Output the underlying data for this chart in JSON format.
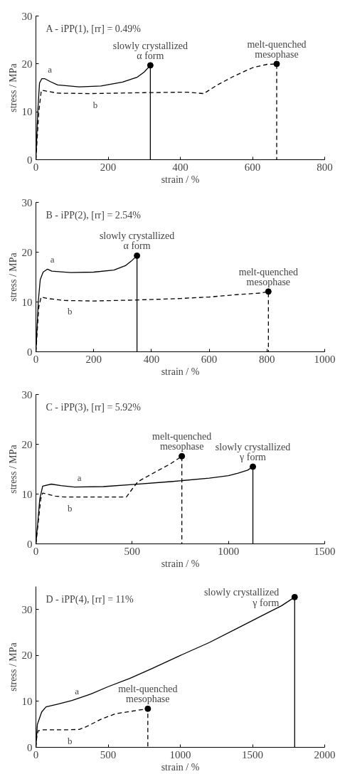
{
  "chart_data": [
    {
      "type": "line",
      "title": "A - iPP(1), [rr] = 0.49%",
      "xlabel": "strain / %",
      "ylabel": "stress / MPa",
      "xlim": [
        0,
        800
      ],
      "ylim": [
        0,
        30
      ],
      "xticks": [
        0,
        200,
        400,
        600,
        800
      ],
      "yticks": [
        0,
        10,
        20,
        30
      ],
      "grid": false,
      "marker": "none",
      "series": [
        {
          "name": "a",
          "color": "#000000",
          "line_style": "solid",
          "x": [
            0,
            5,
            10,
            16,
            25,
            40,
            60,
            120,
            180,
            240,
            280,
            300,
            317,
            317
          ],
          "values": [
            0,
            10,
            16,
            16.9,
            16.9,
            16.3,
            15.6,
            15.2,
            15.4,
            16.2,
            17.2,
            18.3,
            19.7,
            0
          ]
        },
        {
          "name": "b",
          "color": "#000000",
          "line_style": "dashed",
          "x": [
            0,
            8,
            15,
            30,
            60,
            150,
            300,
            420,
            465,
            500,
            550,
            600,
            640,
            667,
            667
          ],
          "values": [
            0,
            10,
            14.5,
            14.3,
            13.9,
            13.8,
            14,
            14.1,
            13.8,
            15.5,
            17.5,
            19.2,
            19.9,
            20,
            0
          ]
        }
      ],
      "annotations": [
        {
          "text": "slowly crystallized\nα form",
          "x": 317,
          "y": 19.7
        },
        {
          "text": "melt-quenched\nmesophase",
          "x": 667,
          "y": 20
        }
      ]
    },
    {
      "type": "line",
      "title": "B - iPP(2), [rr] = 2.54%",
      "xlabel": "strain / %",
      "ylabel": "stress / MPa",
      "xlim": [
        0,
        1000
      ],
      "ylim": [
        0,
        30
      ],
      "xticks": [
        0,
        200,
        400,
        600,
        800,
        1000
      ],
      "yticks": [
        0,
        10,
        20,
        30
      ],
      "grid": false,
      "marker": "none",
      "series": [
        {
          "name": "a",
          "color": "#000000",
          "line_style": "solid",
          "x": [
            0,
            8,
            15,
            25,
            40,
            55,
            120,
            200,
            270,
            310,
            330,
            350,
            350
          ],
          "values": [
            0,
            10,
            14.5,
            16,
            16.6,
            16.2,
            15.9,
            16,
            16.4,
            17.3,
            18.2,
            19.3,
            0
          ]
        },
        {
          "name": "b",
          "color": "#000000",
          "line_style": "dashed",
          "x": [
            0,
            10,
            18,
            40,
            100,
            200,
            350,
            500,
            600,
            700,
            780,
            805,
            805
          ],
          "values": [
            0,
            9,
            11,
            10.7,
            10.3,
            10.2,
            10.4,
            10.7,
            11,
            11.5,
            11.8,
            12.1,
            0
          ]
        }
      ],
      "annotations": [
        {
          "text": "slowly crystallized\nα form",
          "x": 350,
          "y": 19.3
        },
        {
          "text": "melt-quenched\nmesophase",
          "x": 805,
          "y": 12.1
        }
      ]
    },
    {
      "type": "line",
      "title": "C - iPP(3), [rr] = 5.92%",
      "xlabel": "strain / %",
      "ylabel": "stress / MPa",
      "xlim": [
        0,
        1500
      ],
      "ylim": [
        0,
        30
      ],
      "xticks": [
        0,
        500,
        1000,
        1500
      ],
      "yticks": [
        0,
        10,
        20,
        30
      ],
      "grid": false,
      "marker": "none",
      "series": [
        {
          "name": "a",
          "color": "#000000",
          "line_style": "solid",
          "x": [
            0,
            20,
            35,
            80,
            130,
            200,
            350,
            500,
            700,
            900,
            1000,
            1050,
            1100,
            1127,
            1127
          ],
          "values": [
            0,
            9,
            11.6,
            12,
            11.7,
            11.4,
            11.5,
            11.9,
            12.5,
            13.2,
            13.7,
            14.2,
            14.8,
            15.5,
            0
          ]
        },
        {
          "name": "b",
          "color": "#000000",
          "line_style": "dashed",
          "x": [
            0,
            25,
            35,
            100,
            150,
            300,
            470,
            500,
            530,
            600,
            700,
            758,
            758
          ],
          "values": [
            0,
            9,
            10.2,
            9.6,
            9.4,
            9.4,
            9.4,
            11,
            12.5,
            14,
            16.1,
            17.6,
            0
          ]
        }
      ],
      "annotations": [
        {
          "text": "melt-quenched\nmesophase",
          "x": 758,
          "y": 17.6
        },
        {
          "text": "slowly crystallized\nγ form",
          "x": 1127,
          "y": 15.5
        }
      ]
    },
    {
      "type": "line",
      "title": "D - iPP(4), [rr] = 11%",
      "xlabel": "strain / %",
      "ylabel": "stress / MPa",
      "xlim": [
        0,
        2000
      ],
      "ylim": [
        0,
        35
      ],
      "xticks": [
        0,
        500,
        1000,
        1500,
        2000
      ],
      "yticks": [
        0,
        10,
        20,
        30
      ],
      "grid": false,
      "marker": "none",
      "series": [
        {
          "name": "a",
          "color": "#000000",
          "line_style": "solid",
          "x": [
            0,
            10,
            40,
            70,
            150,
            250,
            380,
            500,
            650,
            800,
            1000,
            1200,
            1400,
            1600,
            1700,
            1792,
            1792
          ],
          "values": [
            0,
            5,
            7.7,
            8.8,
            9.4,
            10.2,
            11.6,
            13.2,
            15,
            17.1,
            20,
            22.8,
            26,
            29.2,
            30.8,
            32.7,
            0
          ]
        },
        {
          "name": "b",
          "color": "#000000",
          "line_style": "dashed",
          "x": [
            0,
            5,
            15,
            50,
            200,
            300,
            350,
            450,
            550,
            650,
            775,
            775
          ],
          "values": [
            0,
            2,
            3.6,
            3.8,
            3.8,
            3.9,
            4.5,
            6.1,
            7.3,
            7.8,
            8.4,
            0
          ]
        }
      ],
      "annotations": [
        {
          "text": "slowly crystallized\nγ form",
          "x": 1792,
          "y": 32.7
        },
        {
          "text": "melt-quenched\nmesophase",
          "x": 775,
          "y": 8.4
        }
      ]
    }
  ]
}
